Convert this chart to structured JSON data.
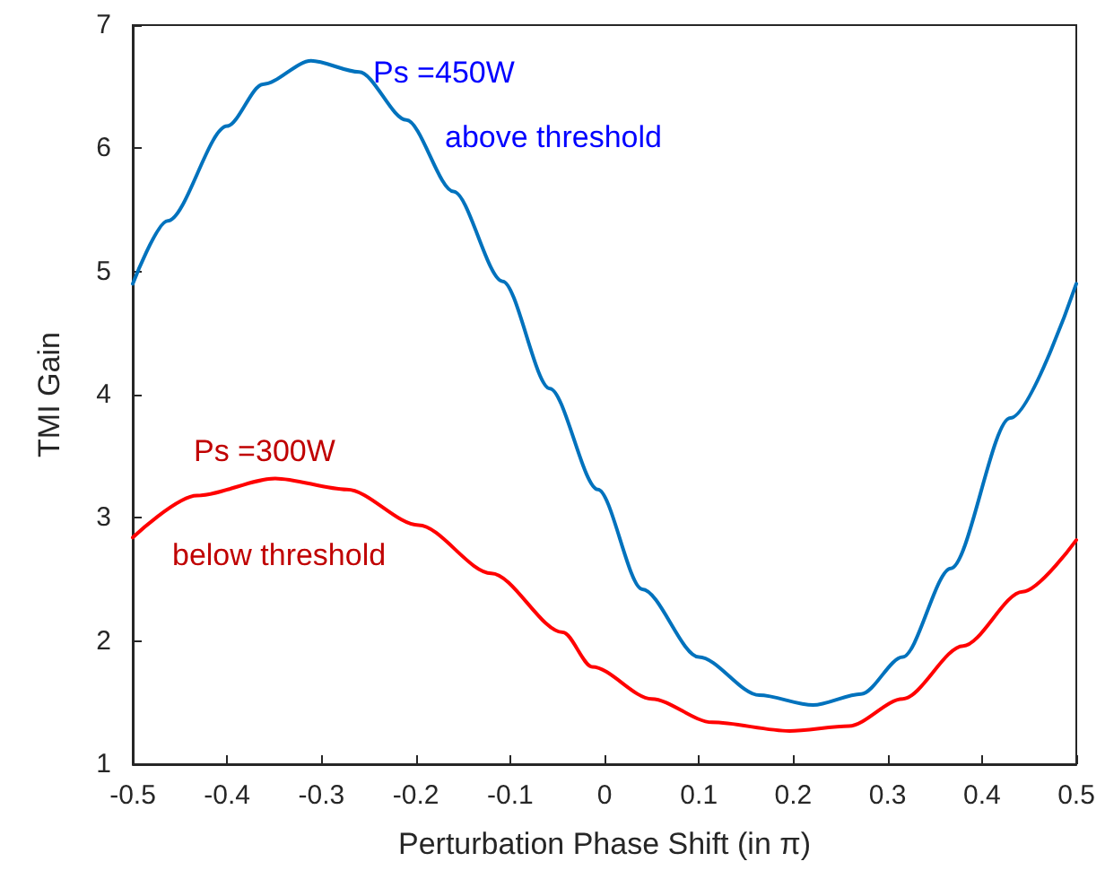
{
  "chart_data": {
    "type": "line",
    "xlabel": "Perturbation Phase Shift (in π)",
    "ylabel": "TMI Gain",
    "xlim": [
      -0.5,
      0.5
    ],
    "xticks": [
      -0.5,
      -0.4,
      -0.3,
      -0.2,
      -0.1,
      0,
      0.1,
      0.2,
      0.3,
      0.4,
      0.5
    ],
    "ylim": [
      1,
      7
    ],
    "yticks": [
      1,
      2,
      3,
      4,
      5,
      6,
      7
    ],
    "grid": false,
    "legend": false,
    "marker": "none",
    "line_style": "solid",
    "annotations": [
      "above threshold",
      "below threshold"
    ],
    "series": [
      {
        "name": "Ps =450W",
        "color": "#0072bd",
        "x": [
          -0.5,
          -0.463,
          -0.4,
          -0.362,
          -0.311,
          -0.26,
          -0.21,
          -0.16,
          -0.108,
          -0.058,
          -0.007,
          0.04,
          0.1,
          0.164,
          0.221,
          0.272,
          0.316,
          0.367,
          0.43,
          0.5
        ],
        "values": [
          4.9,
          5.41,
          6.18,
          6.52,
          6.71,
          6.62,
          6.23,
          5.65,
          4.92,
          4.05,
          3.23,
          2.42,
          1.87,
          1.56,
          1.48,
          1.57,
          1.87,
          2.59,
          3.81,
          4.9
        ]
      },
      {
        "name": "Ps =300W",
        "color": "#ff0000",
        "x": [
          -0.5,
          -0.432,
          -0.349,
          -0.273,
          -0.197,
          -0.12,
          -0.044,
          -0.013,
          0.05,
          0.114,
          0.196,
          0.259,
          0.316,
          0.38,
          0.443,
          0.5
        ],
        "values": [
          2.84,
          3.18,
          3.32,
          3.23,
          2.94,
          2.55,
          2.07,
          1.79,
          1.53,
          1.34,
          1.27,
          1.31,
          1.53,
          1.96,
          2.4,
          2.82
        ]
      }
    ]
  }
}
